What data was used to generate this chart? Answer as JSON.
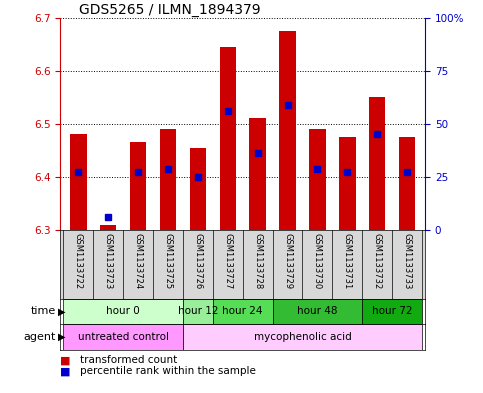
{
  "title": "GDS5265 / ILMN_1894379",
  "samples": [
    "GSM1133722",
    "GSM1133723",
    "GSM1133724",
    "GSM1133725",
    "GSM1133726",
    "GSM1133727",
    "GSM1133728",
    "GSM1133729",
    "GSM1133730",
    "GSM1133731",
    "GSM1133732",
    "GSM1133733"
  ],
  "bar_bottom": 6.3,
  "transformed_counts": [
    6.48,
    6.31,
    6.465,
    6.49,
    6.455,
    6.645,
    6.51,
    6.675,
    6.49,
    6.475,
    6.55,
    6.475
  ],
  "percentile_values": [
    6.41,
    6.325,
    6.41,
    6.415,
    6.4,
    6.525,
    6.445,
    6.535,
    6.415,
    6.41,
    6.48,
    6.41
  ],
  "ylim": [
    6.3,
    6.7
  ],
  "y2lim": [
    0,
    100
  ],
  "yticks_left": [
    6.3,
    6.4,
    6.5,
    6.6,
    6.7
  ],
  "yticks_right": [
    0,
    25,
    50,
    75,
    100
  ],
  "ytick_labels_right": [
    "0",
    "25",
    "50",
    "75",
    "100%"
  ],
  "bar_color": "#cc0000",
  "percentile_color": "#0000cc",
  "grid_color": "#000000",
  "time_groups": [
    {
      "label": "hour 0",
      "cols": [
        0,
        1,
        2,
        3
      ],
      "color": "#ccffcc"
    },
    {
      "label": "hour 12",
      "cols": [
        4
      ],
      "color": "#99ee99"
    },
    {
      "label": "hour 24",
      "cols": [
        5,
        6
      ],
      "color": "#55dd55"
    },
    {
      "label": "hour 48",
      "cols": [
        7,
        8,
        9
      ],
      "color": "#33bb33"
    },
    {
      "label": "hour 72",
      "cols": [
        10,
        11
      ],
      "color": "#11aa11"
    }
  ],
  "agent_groups": [
    {
      "label": "untreated control",
      "cols": [
        0,
        1,
        2,
        3
      ],
      "color": "#ff99ff"
    },
    {
      "label": "mycophenolic acid",
      "cols": [
        4,
        5,
        6,
        7,
        8,
        9,
        10,
        11
      ],
      "color": "#ffccff"
    }
  ],
  "xlabel_time": "time",
  "xlabel_agent": "agent",
  "legend_red_label": "transformed count",
  "legend_blue_label": "percentile rank within the sample",
  "bar_width": 0.55,
  "background_color": "#ffffff",
  "plot_bg": "#ffffff",
  "axis_color_left": "#cc0000",
  "axis_color_right": "#0000cc",
  "title_fontsize": 10,
  "tick_fontsize": 7.5,
  "label_fontsize": 8
}
